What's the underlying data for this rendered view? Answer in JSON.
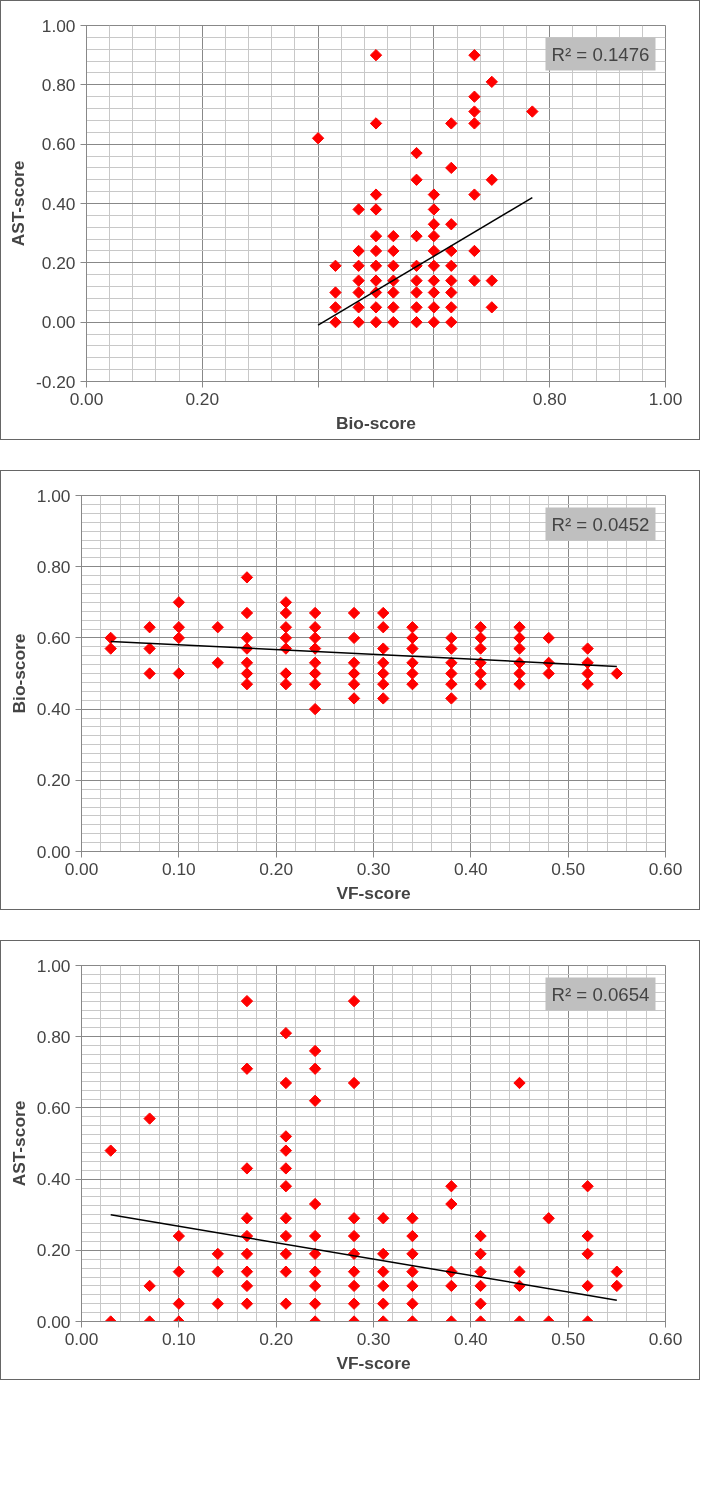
{
  "chart_data": [
    {
      "type": "scatter",
      "xlabel": "Bio-score",
      "ylabel": "AST-score",
      "grid": true,
      "annotations": [
        "R² = 0.1476"
      ],
      "xlim": [
        0,
        1
      ],
      "ylim": [
        -0.2,
        1
      ],
      "xticks": [
        {
          "value": 0,
          "label": "0.00"
        },
        {
          "value": 0.2,
          "label": "0.20"
        },
        {
          "value": 0.4,
          "label": null
        },
        {
          "value": 0.6,
          "label": null
        },
        {
          "value": 0.8,
          "label": "0.80"
        },
        {
          "value": 1,
          "label": "1.00"
        }
      ],
      "yticks": [
        {
          "value": -0.2,
          "label": "-0.20"
        },
        {
          "value": 0,
          "label": "0.00"
        },
        {
          "value": 0.2,
          "label": "0.20"
        },
        {
          "value": 0.4,
          "label": "0.40"
        },
        {
          "value": 0.6,
          "label": "0.60"
        },
        {
          "value": 0.8,
          "label": "0.80"
        },
        {
          "value": 1,
          "label": "1.00"
        }
      ],
      "series": [
        {
          "marker": "diamond",
          "color": "#ff0000",
          "x": [
            0.4,
            0.43,
            0.43,
            0.43,
            0.43,
            0.47,
            0.47,
            0.47,
            0.47,
            0.47,
            0.47,
            0.47,
            0.5,
            0.5,
            0.5,
            0.5,
            0.5,
            0.5,
            0.5,
            0.5,
            0.5,
            0.5,
            0.5,
            0.53,
            0.53,
            0.53,
            0.53,
            0.53,
            0.53,
            0.53,
            0.57,
            0.57,
            0.57,
            0.57,
            0.57,
            0.57,
            0.57,
            0.57,
            0.6,
            0.6,
            0.6,
            0.6,
            0.6,
            0.6,
            0.6,
            0.6,
            0.6,
            0.6,
            0.63,
            0.63,
            0.63,
            0.63,
            0.63,
            0.63,
            0.63,
            0.63,
            0.63,
            0.67,
            0.67,
            0.67,
            0.67,
            0.67,
            0.67,
            0.67,
            0.7,
            0.7,
            0.7,
            0.7,
            0.77
          ],
          "values": [
            0.62,
            0,
            0.05,
            0.1,
            0.19,
            0,
            0.05,
            0.1,
            0.14,
            0.19,
            0.24,
            0.38,
            0,
            0.05,
            0.1,
            0.14,
            0.19,
            0.24,
            0.29,
            0.38,
            0.43,
            0.67,
            0.9,
            0,
            0.05,
            0.1,
            0.14,
            0.19,
            0.24,
            0.29,
            0,
            0.05,
            0.1,
            0.14,
            0.19,
            0.29,
            0.48,
            0.57,
            0,
            0.05,
            0.1,
            0.14,
            0.19,
            0.24,
            0.29,
            0.33,
            0.38,
            0.43,
            0,
            0.05,
            0.1,
            0.14,
            0.19,
            0.24,
            0.33,
            0.52,
            0.67,
            0.14,
            0.24,
            0.43,
            0.67,
            0.71,
            0.76,
            0.9,
            0.05,
            0.14,
            0.48,
            0.81,
            0.71
          ]
        },
        {
          "type": "line",
          "color": "#000000",
          "x": [
            0.4,
            0.77
          ],
          "values": [
            -0.01,
            0.42
          ]
        }
      ]
    },
    {
      "type": "scatter",
      "xlabel": "VF-score",
      "ylabel": "Bio-score",
      "grid": true,
      "annotations": [
        "R² = 0.0452"
      ],
      "xlim": [
        0,
        0.6
      ],
      "ylim": [
        0,
        1
      ],
      "xticks": [
        {
          "value": 0,
          "label": "0.00"
        },
        {
          "value": 0.1,
          "label": "0.10"
        },
        {
          "value": 0.2,
          "label": "0.20"
        },
        {
          "value": 0.3,
          "label": "0.30"
        },
        {
          "value": 0.4,
          "label": "0.40"
        },
        {
          "value": 0.5,
          "label": "0.50"
        },
        {
          "value": 0.6,
          "label": "0.60"
        }
      ],
      "yticks": [
        {
          "value": 0,
          "label": "0.00"
        },
        {
          "value": 0.2,
          "label": "0.20"
        },
        {
          "value": 0.4,
          "label": "0.40"
        },
        {
          "value": 0.6,
          "label": "0.60"
        },
        {
          "value": 0.8,
          "label": "0.80"
        },
        {
          "value": 1,
          "label": "1.00"
        }
      ],
      "series": [
        {
          "marker": "diamond",
          "color": "#ff0000",
          "x": [
            0.03,
            0.03,
            0.07,
            0.07,
            0.07,
            0.1,
            0.1,
            0.1,
            0.1,
            0.14,
            0.14,
            0.17,
            0.17,
            0.17,
            0.17,
            0.17,
            0.17,
            0.17,
            0.21,
            0.21,
            0.21,
            0.21,
            0.21,
            0.21,
            0.21,
            0.24,
            0.24,
            0.24,
            0.24,
            0.24,
            0.24,
            0.24,
            0.24,
            0.28,
            0.28,
            0.28,
            0.28,
            0.28,
            0.28,
            0.31,
            0.31,
            0.31,
            0.31,
            0.31,
            0.31,
            0.31,
            0.34,
            0.34,
            0.34,
            0.34,
            0.34,
            0.34,
            0.38,
            0.38,
            0.38,
            0.38,
            0.38,
            0.38,
            0.41,
            0.41,
            0.41,
            0.41,
            0.41,
            0.41,
            0.45,
            0.45,
            0.45,
            0.45,
            0.45,
            0.45,
            0.48,
            0.48,
            0.48,
            0.52,
            0.52,
            0.52,
            0.52,
            0.55
          ],
          "values": [
            0.6,
            0.57,
            0.63,
            0.57,
            0.5,
            0.7,
            0.63,
            0.6,
            0.5,
            0.63,
            0.53,
            0.77,
            0.67,
            0.6,
            0.57,
            0.53,
            0.5,
            0.47,
            0.7,
            0.67,
            0.63,
            0.6,
            0.57,
            0.5,
            0.47,
            0.67,
            0.63,
            0.6,
            0.57,
            0.53,
            0.5,
            0.47,
            0.4,
            0.67,
            0.6,
            0.53,
            0.5,
            0.47,
            0.43,
            0.67,
            0.63,
            0.57,
            0.53,
            0.5,
            0.47,
            0.43,
            0.63,
            0.6,
            0.57,
            0.53,
            0.5,
            0.47,
            0.6,
            0.57,
            0.53,
            0.5,
            0.47,
            0.43,
            0.63,
            0.6,
            0.57,
            0.53,
            0.5,
            0.47,
            0.63,
            0.6,
            0.57,
            0.53,
            0.5,
            0.47,
            0.6,
            0.53,
            0.5,
            0.57,
            0.53,
            0.5,
            0.47,
            0.5
          ]
        },
        {
          "type": "line",
          "color": "#000000",
          "x": [
            0.03,
            0.55
          ],
          "values": [
            0.59,
            0.52
          ]
        }
      ]
    },
    {
      "type": "scatter",
      "xlabel": "VF-score",
      "ylabel": "AST-score",
      "grid": true,
      "annotations": [
        "R² = 0.0654"
      ],
      "xlim": [
        0,
        0.6
      ],
      "ylim": [
        0,
        1
      ],
      "xticks": [
        {
          "value": 0,
          "label": "0.00"
        },
        {
          "value": 0.1,
          "label": "0.10"
        },
        {
          "value": 0.2,
          "label": "0.20"
        },
        {
          "value": 0.3,
          "label": "0.30"
        },
        {
          "value": 0.4,
          "label": "0.40"
        },
        {
          "value": 0.5,
          "label": "0.50"
        },
        {
          "value": 0.6,
          "label": "0.60"
        }
      ],
      "yticks": [
        {
          "value": 0,
          "label": "0.00"
        },
        {
          "value": 0.2,
          "label": "0.20"
        },
        {
          "value": 0.4,
          "label": "0.40"
        },
        {
          "value": 0.6,
          "label": "0.60"
        },
        {
          "value": 0.8,
          "label": "0.80"
        },
        {
          "value": 1,
          "label": "1.00"
        }
      ],
      "series": [
        {
          "marker": "diamond",
          "color": "#ff0000",
          "x": [
            0.03,
            0.03,
            0.07,
            0.07,
            0.07,
            0.1,
            0.1,
            0.1,
            0.1,
            0.14,
            0.14,
            0.14,
            0.17,
            0.17,
            0.17,
            0.17,
            0.17,
            0.17,
            0.17,
            0.17,
            0.17,
            0.21,
            0.21,
            0.21,
            0.21,
            0.21,
            0.21,
            0.21,
            0.21,
            0.21,
            0.21,
            0.21,
            0.24,
            0.24,
            0.24,
            0.24,
            0.24,
            0.24,
            0.24,
            0.24,
            0.24,
            0.24,
            0.28,
            0.28,
            0.28,
            0.28,
            0.28,
            0.28,
            0.28,
            0.28,
            0.28,
            0.31,
            0.31,
            0.31,
            0.31,
            0.31,
            0.31,
            0.34,
            0.34,
            0.34,
            0.34,
            0.34,
            0.34,
            0.34,
            0.38,
            0.38,
            0.38,
            0.38,
            0.38,
            0.41,
            0.41,
            0.41,
            0.41,
            0.41,
            0.41,
            0.45,
            0.45,
            0.45,
            0.45,
            0.48,
            0.48,
            0.52,
            0.52,
            0.52,
            0.52,
            0.52,
            0.55,
            0.55
          ],
          "values": [
            0,
            0.48,
            0,
            0.1,
            0.57,
            0,
            0.05,
            0.14,
            0.24,
            0.05,
            0.14,
            0.19,
            0.05,
            0.1,
            0.14,
            0.19,
            0.24,
            0.29,
            0.43,
            0.71,
            0.9,
            0.05,
            0.14,
            0.19,
            0.24,
            0.29,
            0.38,
            0.43,
            0.48,
            0.52,
            0.67,
            0.81,
            0,
            0.05,
            0.1,
            0.14,
            0.19,
            0.24,
            0.33,
            0.62,
            0.71,
            0.76,
            0,
            0.05,
            0.1,
            0.14,
            0.19,
            0.24,
            0.29,
            0.67,
            0.9,
            0,
            0.05,
            0.1,
            0.14,
            0.19,
            0.29,
            0,
            0.05,
            0.1,
            0.14,
            0.19,
            0.24,
            0.29,
            0,
            0.1,
            0.14,
            0.33,
            0.38,
            0,
            0.05,
            0.1,
            0.14,
            0.19,
            0.24,
            0,
            0.1,
            0.14,
            0.67,
            0,
            0.29,
            0,
            0.1,
            0.19,
            0.24,
            0.38,
            0.1,
            0.14
          ]
        },
        {
          "type": "line",
          "color": "#000000",
          "x": [
            0.03,
            0.55
          ],
          "values": [
            0.3,
            0.06
          ]
        }
      ]
    }
  ]
}
